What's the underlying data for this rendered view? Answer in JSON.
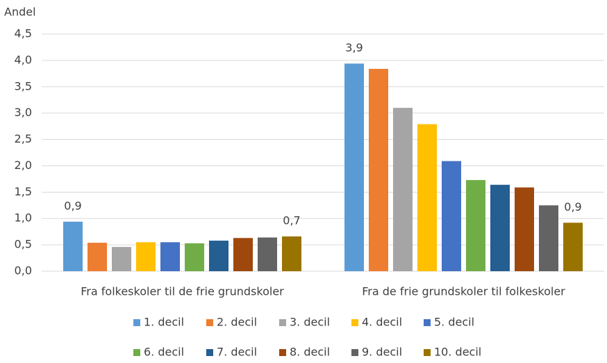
{
  "chart_data": {
    "type": "bar",
    "y_label": "Andel",
    "categories": [
      "Fra folkeskoler til de frie grundskoler",
      "Fra de frie grundskoler til folkeskoler"
    ],
    "series": [
      {
        "name": "1. decil",
        "color": "#5b9bd5",
        "values": [
          0.94,
          3.94
        ],
        "value_labels": [
          "0,9",
          "3,9"
        ]
      },
      {
        "name": "2. decil",
        "color": "#ed7d31",
        "values": [
          0.54,
          3.84
        ]
      },
      {
        "name": "3. decil",
        "color": "#a5a5a5",
        "values": [
          0.46,
          3.1
        ]
      },
      {
        "name": "4. decil",
        "color": "#ffc000",
        "values": [
          0.55,
          2.79
        ]
      },
      {
        "name": "5. decil",
        "color": "#4472c4",
        "values": [
          0.55,
          2.09
        ]
      },
      {
        "name": "6. decil",
        "color": "#70ad47",
        "values": [
          0.53,
          1.73
        ]
      },
      {
        "name": "7. decil",
        "color": "#255e91",
        "values": [
          0.58,
          1.64
        ]
      },
      {
        "name": "8. decil",
        "color": "#9e480e",
        "values": [
          0.63,
          1.59
        ]
      },
      {
        "name": "9. decil",
        "color": "#636363",
        "values": [
          0.64,
          1.25
        ]
      },
      {
        "name": "10. decil",
        "color": "#997300",
        "values": [
          0.66,
          0.92
        ],
        "value_labels": [
          "0,7",
          "0,9"
        ]
      }
    ],
    "ylim": [
      0,
      4.5
    ],
    "yticks": [
      {
        "value": 0,
        "label": "0,0"
      },
      {
        "value": 0.5,
        "label": "0,5"
      },
      {
        "value": 1,
        "label": "1,0"
      },
      {
        "value": 1.5,
        "label": "1,5"
      },
      {
        "value": 2,
        "label": "2,0"
      },
      {
        "value": 2.5,
        "label": "2,5"
      },
      {
        "value": 3,
        "label": "3,0"
      },
      {
        "value": 3.5,
        "label": "3,5"
      },
      {
        "value": 4,
        "label": "4,0"
      },
      {
        "value": 4.5,
        "label": "4,5"
      }
    ],
    "grid": true
  }
}
